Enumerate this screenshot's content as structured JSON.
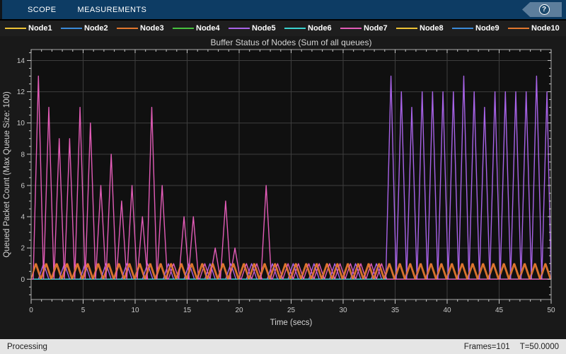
{
  "toolbar": {
    "tabs": [
      {
        "label": "SCOPE"
      },
      {
        "label": "MEASUREMENTS"
      }
    ],
    "help_icon": "?"
  },
  "status_bar": {
    "left": "Processing",
    "frames": "Frames=101",
    "time": "T=50.0000"
  },
  "chart_data": {
    "type": "line",
    "title": "Buffer Status of Nodes (Sum of all queues)",
    "xlabel": "Time (secs)",
    "ylabel": "Queued Packet Count (Max Queue Size: 100)",
    "xlim": [
      0,
      50
    ],
    "ylim": [
      -1.3,
      14.7
    ],
    "x_ticks": [
      0,
      5,
      10,
      15,
      20,
      25,
      30,
      35,
      40,
      45,
      50
    ],
    "y_ticks": [
      0,
      2,
      4,
      6,
      8,
      10,
      12,
      14
    ],
    "x_minor_step": 1,
    "y_minor_step": 0.5,
    "grid": true,
    "legend_position": "top",
    "axes_bg": "#101010",
    "grid_color": "#3e3e3e",
    "box_color": "#a8a8a8",
    "tick_color": "#c9c9c9",
    "label_color": "#d4d4d4",
    "draw_order": [
      "Node1",
      "Node2",
      "Node3",
      "Node4",
      "Node8",
      "Node9",
      "Node5",
      "Node6",
      "Node7",
      "Node10"
    ],
    "series": [
      {
        "name": "Node1",
        "color": "#eec335",
        "baseline": 0,
        "peaks": []
      },
      {
        "name": "Node2",
        "color": "#3a8ad8",
        "baseline": 0,
        "peaks": []
      },
      {
        "name": "Node3",
        "color": "#e2772e",
        "baseline": 0,
        "peaks": [
          [
            0.5,
            1
          ],
          [
            1.5,
            1
          ],
          [
            2.5,
            1
          ],
          [
            3.5,
            1
          ],
          [
            4.5,
            1
          ],
          [
            5.5,
            1
          ],
          [
            6.5,
            1
          ],
          [
            7.5,
            1
          ],
          [
            8.5,
            1
          ],
          [
            9.5,
            1
          ],
          [
            10.5,
            1
          ],
          [
            11.5,
            1
          ],
          [
            12.5,
            1
          ],
          [
            13.5,
            1
          ],
          [
            14.5,
            1
          ],
          [
            15.5,
            1
          ],
          [
            16.5,
            1
          ],
          [
            17.5,
            1
          ],
          [
            18.5,
            1
          ],
          [
            19.5,
            1
          ],
          [
            20.5,
            1
          ],
          [
            21.5,
            1
          ],
          [
            22.5,
            1
          ],
          [
            23.5,
            1
          ],
          [
            24.5,
            1
          ],
          [
            25.5,
            1
          ],
          [
            26.5,
            1
          ],
          [
            27.5,
            1
          ],
          [
            28.5,
            1
          ],
          [
            29.5,
            1
          ],
          [
            30.5,
            1
          ],
          [
            31.5,
            1
          ],
          [
            32.5,
            1
          ],
          [
            33.5,
            1
          ],
          [
            34.5,
            1
          ],
          [
            35.5,
            1
          ],
          [
            36.5,
            1
          ],
          [
            37.5,
            1
          ],
          [
            38.5,
            1
          ],
          [
            39.5,
            1
          ],
          [
            40.5,
            1
          ],
          [
            41.5,
            1
          ],
          [
            42.5,
            1
          ],
          [
            43.5,
            1
          ],
          [
            44.5,
            1
          ],
          [
            45.5,
            1
          ],
          [
            46.5,
            1
          ],
          [
            47.5,
            1
          ],
          [
            48.5,
            1
          ],
          [
            49.5,
            1
          ]
        ]
      },
      {
        "name": "Node4",
        "color": "#47c23e",
        "baseline": 0,
        "peaks": []
      },
      {
        "name": "Node5",
        "color": "#a863e8",
        "baseline": 0,
        "peaks": [
          [
            1.2,
            1
          ],
          [
            3.2,
            1
          ],
          [
            5.2,
            1
          ],
          [
            7.2,
            1
          ],
          [
            9.2,
            1
          ],
          [
            11.2,
            1
          ],
          [
            13.2,
            1
          ],
          [
            15.2,
            1
          ],
          [
            17.2,
            1
          ],
          [
            19.2,
            1
          ],
          [
            21.2,
            1
          ],
          [
            23.2,
            1
          ],
          [
            25.2,
            1
          ],
          [
            27.2,
            1
          ],
          [
            29.2,
            1
          ],
          [
            31.2,
            1
          ],
          [
            33.2,
            1
          ],
          [
            34.6,
            13
          ],
          [
            35.6,
            12
          ],
          [
            36.6,
            11
          ],
          [
            37.6,
            12
          ],
          [
            38.6,
            12
          ],
          [
            39.6,
            12
          ],
          [
            40.6,
            12
          ],
          [
            41.6,
            13
          ],
          [
            42.6,
            12
          ],
          [
            43.6,
            11
          ],
          [
            44.6,
            12
          ],
          [
            45.6,
            12
          ],
          [
            46.6,
            12
          ],
          [
            47.6,
            12
          ],
          [
            48.6,
            13
          ],
          [
            49.6,
            12
          ]
        ]
      },
      {
        "name": "Node6",
        "color": "#3ad2cf",
        "baseline": 0,
        "peaks": []
      },
      {
        "name": "Node7",
        "color": "#e25cb7",
        "baseline": 0,
        "peaks": [
          [
            0.7,
            13
          ],
          [
            1.7,
            11
          ],
          [
            2.7,
            9
          ],
          [
            3.7,
            9
          ],
          [
            4.7,
            11
          ],
          [
            5.7,
            10
          ],
          [
            6.7,
            6
          ],
          [
            7.7,
            8
          ],
          [
            8.7,
            5
          ],
          [
            9.7,
            6
          ],
          [
            10.7,
            4
          ],
          [
            11.6,
            11
          ],
          [
            12.6,
            6
          ],
          [
            13.7,
            1
          ],
          [
            14.7,
            4
          ],
          [
            15.6,
            4
          ],
          [
            16.7,
            1
          ],
          [
            17.7,
            2
          ],
          [
            18.7,
            5
          ],
          [
            19.6,
            2
          ],
          [
            20.7,
            1
          ],
          [
            21.7,
            1
          ],
          [
            22.6,
            6
          ],
          [
            23.7,
            1
          ],
          [
            24.7,
            1
          ],
          [
            25.7,
            1
          ],
          [
            26.7,
            1
          ],
          [
            27.7,
            1
          ],
          [
            28.7,
            1
          ],
          [
            29.7,
            1
          ],
          [
            30.7,
            1
          ],
          [
            31.7,
            1
          ],
          [
            32.7,
            1
          ],
          [
            33.7,
            1
          ]
        ]
      },
      {
        "name": "Node8",
        "color": "#eec335",
        "baseline": 0,
        "peaks": []
      },
      {
        "name": "Node9",
        "color": "#3a8ad8",
        "baseline": 0,
        "peaks": []
      },
      {
        "name": "Node10",
        "color": "#e2772e",
        "baseline": 0,
        "peaks": [
          [
            0.4,
            1
          ],
          [
            1.4,
            1
          ],
          [
            2.4,
            1
          ],
          [
            3.4,
            1
          ],
          [
            4.4,
            1
          ],
          [
            5.4,
            1
          ],
          [
            6.4,
            1
          ],
          [
            7.4,
            1
          ],
          [
            8.4,
            1
          ],
          [
            9.4,
            1
          ],
          [
            10.4,
            1
          ],
          [
            11.4,
            1
          ],
          [
            12.4,
            1
          ],
          [
            13.4,
            1
          ],
          [
            14.4,
            1
          ],
          [
            15.4,
            1
          ],
          [
            16.4,
            1
          ],
          [
            17.4,
            1
          ],
          [
            18.4,
            1
          ],
          [
            19.4,
            1
          ],
          [
            20.4,
            1
          ],
          [
            21.4,
            1
          ],
          [
            22.4,
            1
          ],
          [
            23.4,
            1
          ],
          [
            24.4,
            1
          ],
          [
            25.4,
            1
          ],
          [
            26.4,
            1
          ],
          [
            27.4,
            1
          ],
          [
            28.4,
            1
          ],
          [
            29.4,
            1
          ],
          [
            30.4,
            1
          ],
          [
            31.4,
            1
          ],
          [
            32.4,
            1
          ],
          [
            33.4,
            1
          ],
          [
            34.4,
            1
          ],
          [
            35.4,
            1
          ],
          [
            36.4,
            1
          ],
          [
            37.4,
            1
          ],
          [
            38.4,
            1
          ],
          [
            39.4,
            1
          ],
          [
            40.4,
            1
          ],
          [
            41.4,
            1
          ],
          [
            42.4,
            1
          ],
          [
            43.4,
            1
          ],
          [
            44.4,
            1
          ],
          [
            45.4,
            1
          ],
          [
            46.4,
            1
          ],
          [
            47.4,
            1
          ],
          [
            48.4,
            1
          ],
          [
            49.4,
            1
          ]
        ]
      }
    ]
  }
}
